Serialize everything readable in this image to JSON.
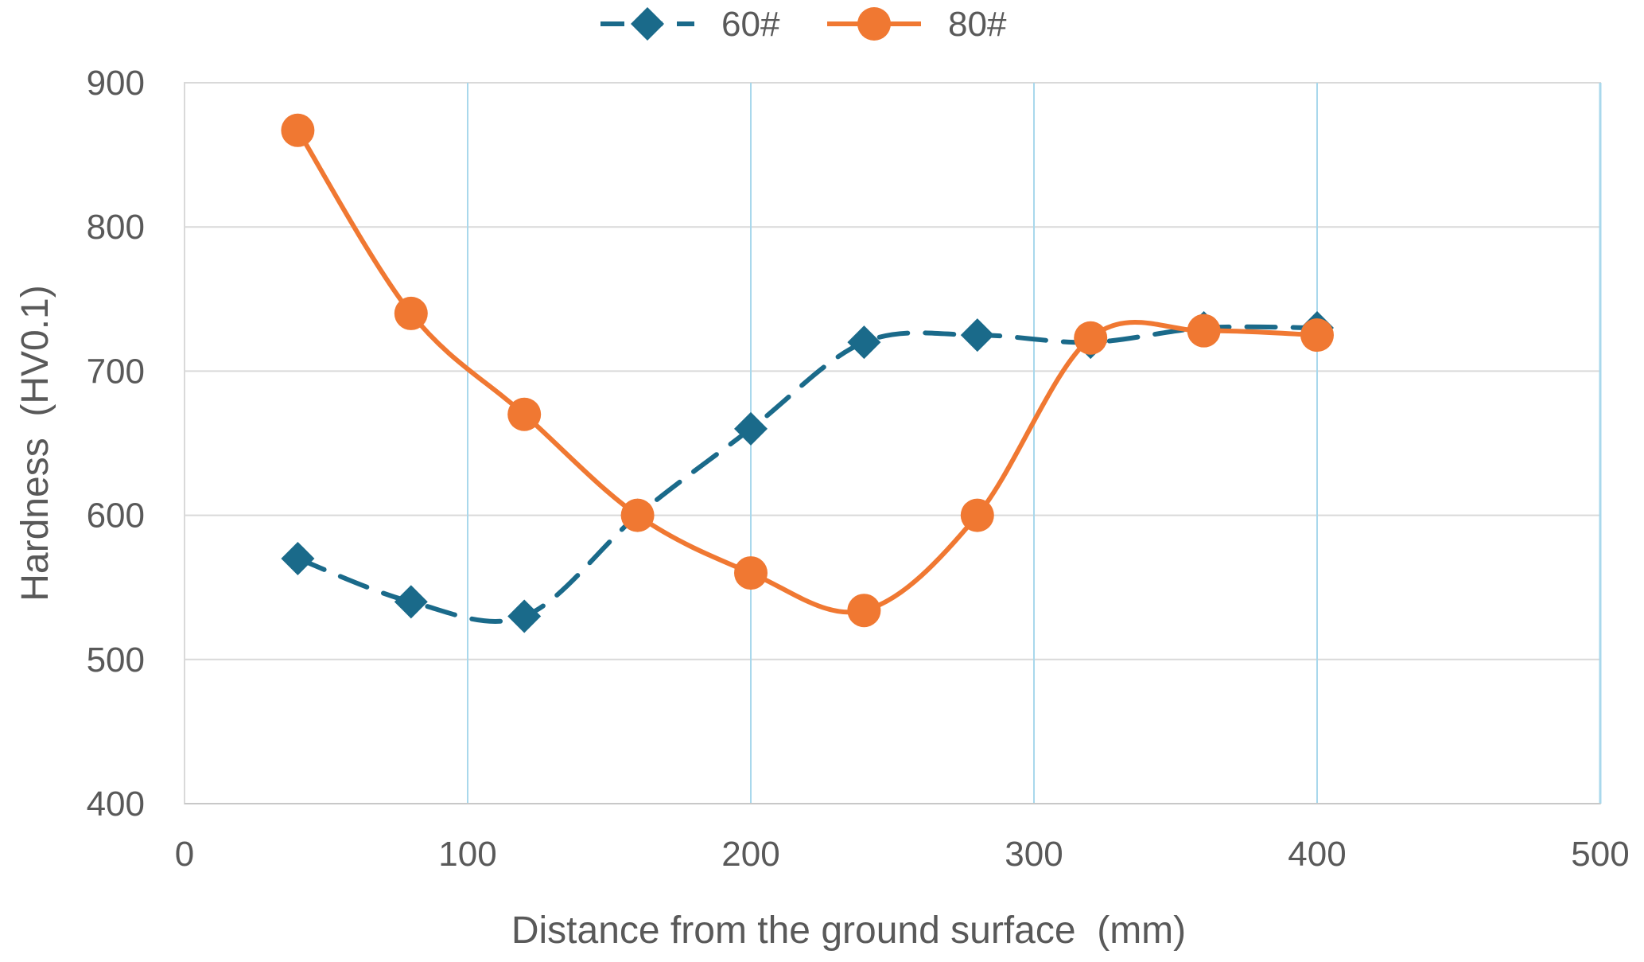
{
  "chart_data": {
    "type": "line",
    "title": "",
    "xlabel": "Distance from the ground surface  (mm)",
    "ylabel": "Hardness  (HV0.1)",
    "xlim": [
      0,
      500
    ],
    "ylim": [
      400,
      900
    ],
    "xticks": [
      0,
      100,
      200,
      300,
      400,
      500
    ],
    "yticks": [
      400,
      500,
      600,
      700,
      800,
      900
    ],
    "grid": true,
    "legend_position": "top-center",
    "series": [
      {
        "name": "60#",
        "color": "#1a6a8a",
        "line_style": "dashed",
        "marker": "diamond",
        "x": [
          40,
          80,
          120,
          160,
          200,
          240,
          280,
          320,
          360,
          400
        ],
        "y": [
          570,
          540,
          530,
          600,
          660,
          720,
          725,
          720,
          730,
          730
        ]
      },
      {
        "name": "80#",
        "color": "#f07832",
        "line_style": "solid",
        "marker": "circle",
        "x": [
          40,
          80,
          120,
          160,
          200,
          240,
          280,
          320,
          360,
          400
        ],
        "y": [
          867,
          740,
          670,
          600,
          560,
          534,
          600,
          723,
          728,
          725
        ]
      }
    ]
  }
}
